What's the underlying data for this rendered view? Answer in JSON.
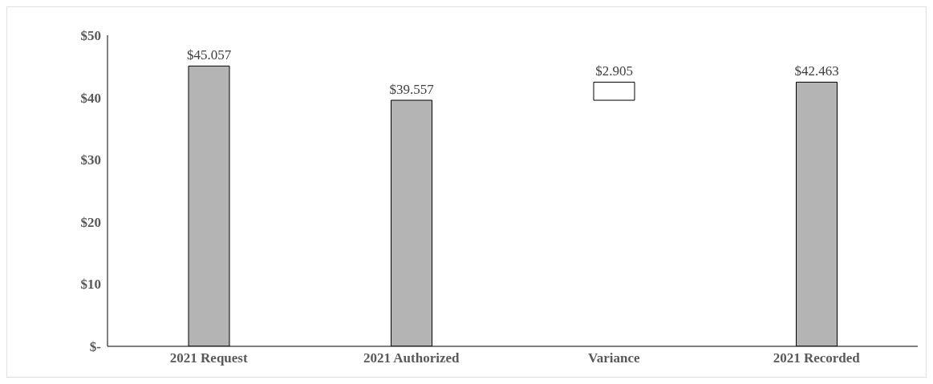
{
  "chart_data": {
    "type": "bar",
    "categories": [
      "2021 Request",
      "2021 Authorized",
      "Variance",
      "2021 Recorded"
    ],
    "values": [
      45.057,
      39.557,
      2.905,
      42.463
    ],
    "base": [
      0,
      0,
      39.557,
      0
    ],
    "colors": [
      "#b4b4b4",
      "#b4b4b4",
      "#ffffff",
      "#b4b4b4"
    ],
    "value_labels": [
      "$45.057",
      "$39.557",
      "$2.905",
      "$42.463"
    ],
    "ylim": [
      0,
      50
    ],
    "yticks": [
      {
        "value": 0,
        "label": "$-"
      },
      {
        "value": 10,
        "label": "$10"
      },
      {
        "value": 20,
        "label": "$20"
      },
      {
        "value": 30,
        "label": "$30"
      },
      {
        "value": 40,
        "label": "$40"
      },
      {
        "value": 50,
        "label": "$50"
      }
    ],
    "grid": false,
    "legend": false
  }
}
